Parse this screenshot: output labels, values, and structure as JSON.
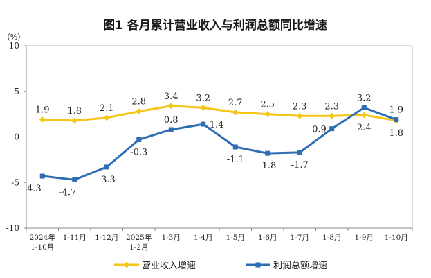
{
  "chart_data": {
    "type": "line",
    "title": "图1 各月累计营业收入与利润总额同比增速",
    "ylabel": "（%）",
    "ylim": [
      -10,
      10
    ],
    "yticks": [
      10,
      5,
      0,
      -5,
      -10
    ],
    "categories": [
      [
        "2024年",
        "1-10月"
      ],
      [
        "1-11月"
      ],
      [
        "1-12月"
      ],
      [
        "2025年",
        "1-2月"
      ],
      [
        "1-3月"
      ],
      [
        "1-4月"
      ],
      [
        "1-5月"
      ],
      [
        "1-6月"
      ],
      [
        "1-7月"
      ],
      [
        "1-8月"
      ],
      [
        "1-9月"
      ],
      [
        "1-10月"
      ]
    ],
    "series": [
      {
        "name": "营业收入增速",
        "color": "#F5C518",
        "marker": "diamond",
        "values": [
          1.9,
          1.8,
          2.1,
          2.8,
          3.4,
          3.2,
          2.7,
          2.5,
          2.3,
          2.3,
          2.4,
          1.8
        ],
        "labels": [
          "1.9",
          "1.8",
          "2.1",
          "2.8",
          "3.4",
          "3.2",
          "2.7",
          "2.5",
          "2.3",
          "2.3",
          "2.4",
          "1.8"
        ]
      },
      {
        "name": "利润总额增速",
        "color": "#2E6DB4",
        "marker": "square",
        "values": [
          -4.3,
          -4.7,
          -3.3,
          -0.3,
          0.8,
          1.4,
          -1.1,
          -1.8,
          -1.7,
          0.9,
          3.2,
          1.9
        ],
        "labels": [
          "-4.3",
          "-4.7",
          "-3.3",
          "-0.3",
          "0.8",
          "1.4",
          "-1.1",
          "-1.8",
          "-1.7",
          "0.9",
          "3.2",
          "1.9"
        ]
      }
    ],
    "grid": false,
    "legend_position": "bottom"
  }
}
